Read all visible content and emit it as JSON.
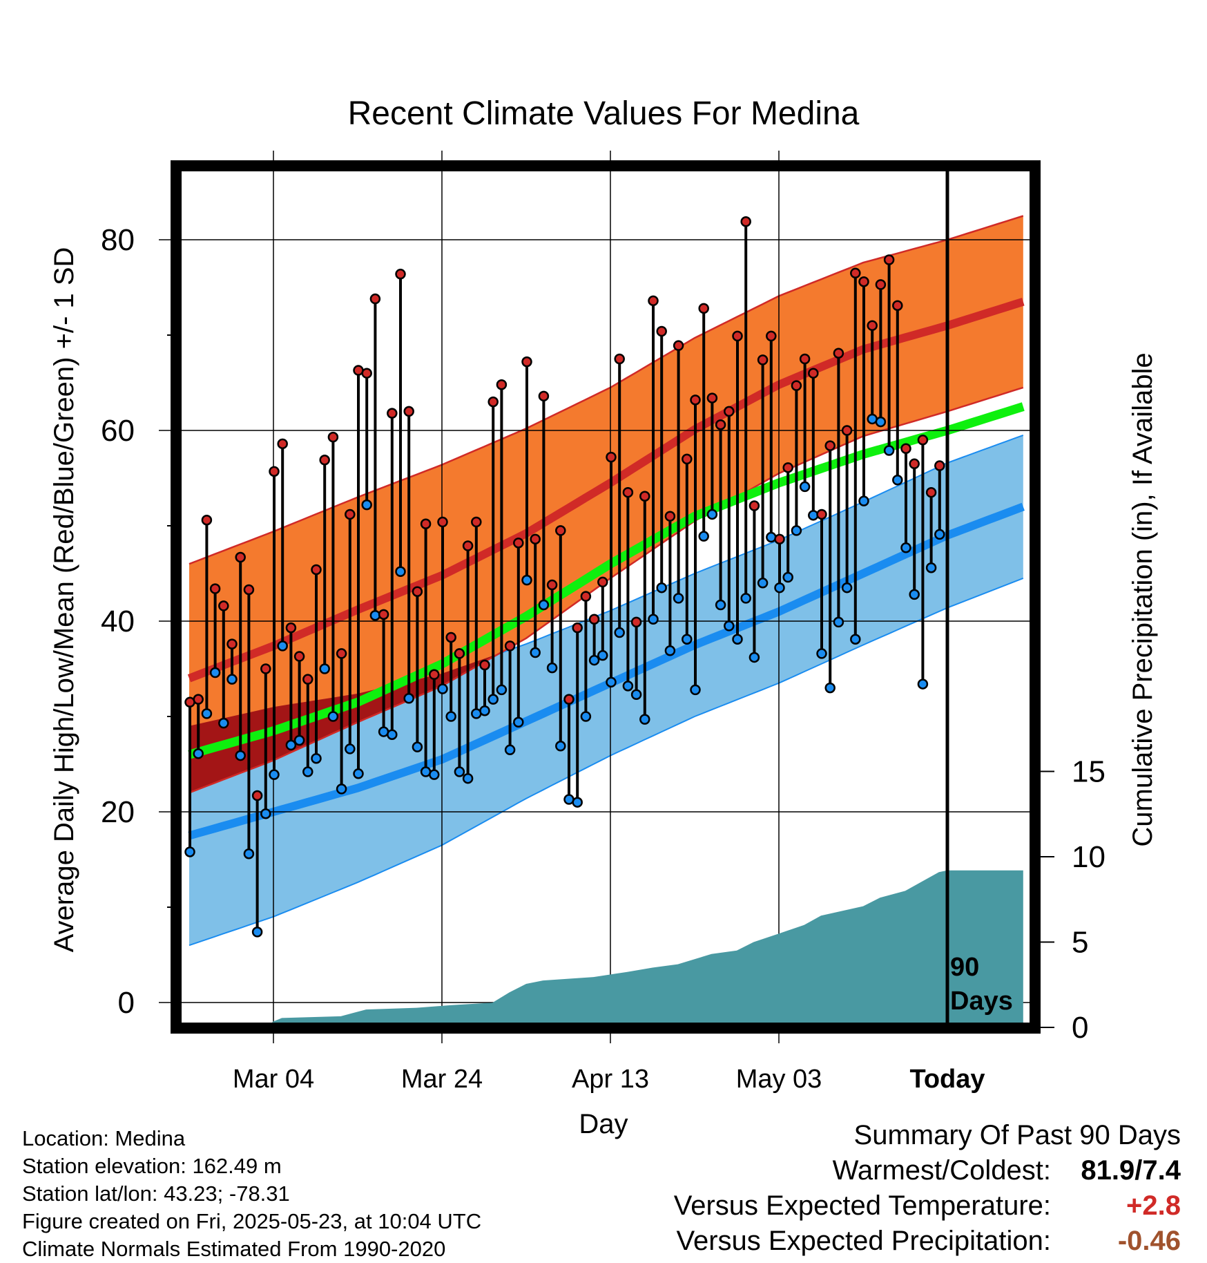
{
  "chart_data": {
    "type": "line",
    "title": "Recent Climate Values For Medina",
    "xlabel": "Day",
    "ylabel": "Average Daily High/Low/Mean (Red/Blue/Green) +/- 1 SD",
    "y2label": "Cumulative Precipitation (in), If Available",
    "x_range_days": [
      -99,
      0
    ],
    "ylim": [
      -2,
      88
    ],
    "y_ticks": [
      0,
      20,
      40,
      60,
      80
    ],
    "y2lim": [
      0,
      40
    ],
    "y2_ticks": [
      0,
      5,
      10,
      15
    ],
    "x_ticks": [
      {
        "label": "Mar 04",
        "day": -80
      },
      {
        "label": "Mar 24",
        "day": -60
      },
      {
        "label": "Apr 13",
        "day": -40
      },
      {
        "label": "May 03",
        "day": -20
      },
      {
        "label": "Today",
        "day": 0
      }
    ],
    "marker_label": "90 Days",
    "grid": true,
    "colors": {
      "high_band": "#f47a2e",
      "high_line": "#d02a27",
      "low_band": "#7fc0e8",
      "low_line": "#1a8cf0",
      "mean_line": "#0ef00e",
      "overlap_band": "#a31516",
      "precip": "#4999a2",
      "record_high": "#d02a27",
      "record_low": "#1a8cf0"
    },
    "normals": {
      "day": [
        -90,
        -80,
        -70,
        -60,
        -50,
        -40,
        -30,
        -20,
        -10,
        0,
        9
      ],
      "high_mean": [
        34.0,
        37.4,
        41.2,
        44.8,
        49.2,
        54.5,
        60.1,
        64.8,
        68.5,
        71.0,
        73.5
      ],
      "high_sd": [
        12.0,
        12.0,
        11.8,
        11.6,
        11.0,
        10.0,
        9.6,
        9.3,
        9.1,
        9.0,
        9.0
      ],
      "low_mean": [
        17.5,
        20.0,
        22.5,
        25.5,
        29.5,
        33.5,
        37.5,
        41.0,
        45.0,
        49.0,
        52.0
      ],
      "low_sd": [
        11.5,
        11.0,
        9.9,
        9.0,
        8.1,
        7.6,
        7.5,
        7.5,
        7.5,
        7.6,
        7.5
      ],
      "mean": [
        26.0,
        28.5,
        31.5,
        35.5,
        40.5,
        46.0,
        51.0,
        54.5,
        57.5,
        60.0,
        62.5
      ]
    },
    "daily": {
      "day": [
        -90,
        -89,
        -88,
        -87,
        -86,
        -85,
        -84,
        -83,
        -82,
        -81,
        -80,
        -79,
        -78,
        -77,
        -76,
        -75,
        -74,
        -73,
        -72,
        -71,
        -70,
        -69,
        -68,
        -67,
        -66,
        -65,
        -64,
        -63,
        -62,
        -61,
        -60,
        -59,
        -58,
        -57,
        -56,
        -55,
        -54,
        -53,
        -52,
        -51,
        -50,
        -49,
        -48,
        -47,
        -46,
        -45,
        -44,
        -43,
        -42,
        -41,
        -40,
        -39,
        -38,
        -37,
        -36,
        -35,
        -34,
        -33,
        -32,
        -31,
        -30,
        -29,
        -28,
        -27,
        -26,
        -25,
        -24,
        -23,
        -22,
        -21,
        -20,
        -19,
        -18,
        -17,
        -16,
        -15,
        -14,
        -13,
        -12,
        -11,
        -10,
        -9,
        -8,
        -7,
        -6,
        -5,
        -4,
        -3,
        -2,
        -1
      ],
      "high": [
        31.5,
        31.8,
        50.6,
        43.4,
        41.6,
        37.6,
        46.7,
        43.3,
        21.7,
        35.0,
        55.7,
        58.6,
        39.3,
        36.3,
        33.9,
        45.4,
        56.9,
        59.3,
        36.6,
        51.2,
        66.3,
        66.0,
        73.8,
        40.7,
        61.8,
        76.4,
        62.0,
        43.1,
        50.2,
        34.4,
        50.4,
        38.3,
        36.6,
        47.9,
        50.4,
        35.4,
        63.0,
        64.8,
        37.4,
        48.2,
        67.2,
        48.6,
        63.6,
        43.8,
        49.5,
        31.8,
        39.3,
        42.6,
        40.2,
        44.1,
        57.2,
        67.5,
        53.5,
        39.9,
        53.1,
        73.6,
        70.4,
        51.0,
        68.9,
        57.0,
        63.2,
        72.8,
        63.4,
        60.6,
        62.0,
        69.9,
        81.9,
        52.1,
        67.4,
        69.9,
        48.6,
        56.1,
        64.7,
        67.5,
        66.0,
        51.2,
        58.4,
        68.1,
        60.0,
        76.5,
        75.6,
        71.0,
        75.3,
        77.9,
        73.1,
        58.1,
        56.5,
        59.0,
        53.5,
        56.3
      ],
      "low": [
        15.8,
        26.1,
        30.3,
        34.6,
        29.3,
        33.9,
        25.9,
        15.6,
        7.4,
        19.8,
        23.9,
        37.4,
        27.0,
        27.5,
        24.2,
        25.6,
        35.0,
        30.0,
        22.4,
        26.6,
        24.0,
        52.2,
        40.6,
        28.4,
        28.1,
        45.2,
        31.9,
        26.8,
        24.2,
        23.9,
        32.9,
        30.0,
        24.2,
        23.5,
        30.3,
        30.6,
        31.8,
        32.8,
        26.5,
        29.4,
        44.3,
        36.7,
        41.7,
        35.1,
        26.9,
        21.3,
        21.0,
        30.0,
        35.9,
        36.4,
        33.6,
        38.8,
        33.2,
        32.3,
        29.7,
        40.2,
        43.5,
        36.9,
        42.4,
        38.1,
        32.8,
        48.9,
        51.2,
        41.7,
        39.5,
        38.1,
        42.4,
        36.2,
        44.0,
        48.8,
        43.5,
        44.6,
        49.5,
        54.1,
        51.1,
        36.6,
        33.0,
        39.9,
        43.5,
        38.1,
        52.6,
        61.2,
        60.9,
        57.9,
        54.8,
        47.7,
        42.8,
        33.4,
        45.6,
        49.1
      ]
    },
    "precip_cumulative": {
      "day": [
        -90,
        -81,
        -80,
        -79,
        -72,
        -69,
        -63,
        -59,
        -54,
        -52,
        -50,
        -48,
        -45,
        -42,
        -38,
        -35,
        -32,
        -28,
        -25,
        -23,
        -20,
        -17,
        -15,
        -10,
        -8,
        -5,
        -1,
        0,
        9
      ],
      "value": [
        0,
        0,
        0.35,
        0.55,
        0.65,
        1.05,
        1.15,
        1.3,
        1.45,
        2.05,
        2.55,
        2.75,
        2.85,
        2.95,
        3.25,
        3.5,
        3.7,
        4.3,
        4.5,
        5.0,
        5.5,
        6.0,
        6.55,
        7.1,
        7.6,
        8.0,
        9.1,
        9.2,
        9.2
      ]
    }
  },
  "footer": {
    "location": "Location: Medina",
    "elevation": "Station elevation: 162.49 m",
    "latlon": "Station lat/lon: 43.23; -78.31",
    "created": "Figure created on Fri, 2025-05-23, at 10:04 UTC",
    "normals_note": "Climate Normals Estimated From 1990-2020"
  },
  "summary": {
    "title": "Summary Of Past 90 Days",
    "warmest_label": "Warmest/Coldest:",
    "warmest_value": "81.9/7.4",
    "temp_label": "Versus Expected Temperature:",
    "temp_value": "+2.8",
    "temp_color": "#d02a27",
    "precip_label": "Versus Expected Precipitation:",
    "precip_value": "-0.46",
    "precip_color": "#a0522d"
  }
}
